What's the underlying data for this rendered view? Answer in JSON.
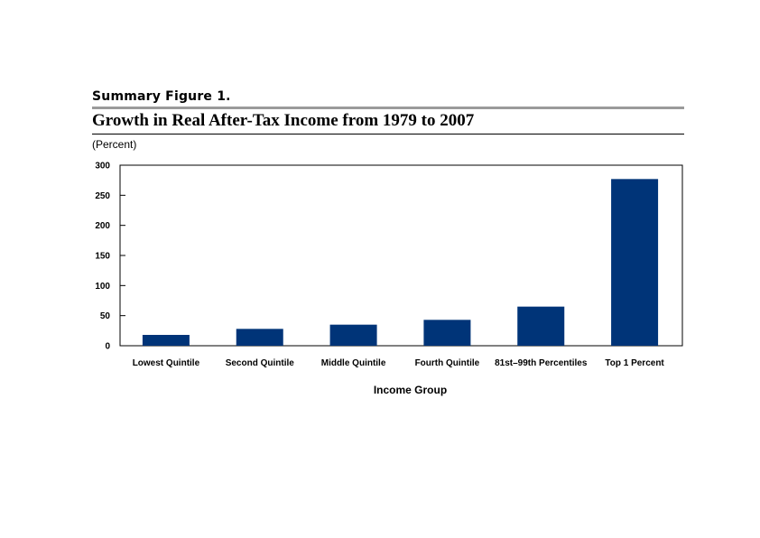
{
  "figure": {
    "label": "Summary Figure 1.",
    "unit_label": "(Percent)"
  },
  "chart_data": {
    "type": "bar",
    "title": "Growth in Real After-Tax Income from 1979 to 2007",
    "xlabel": "Income Group",
    "ylabel": "(Percent)",
    "categories": [
      "Lowest Quintile",
      "Second Quintile",
      "Middle Quintile",
      "Fourth Quintile",
      "81st–99th Percentiles",
      "Top 1 Percent"
    ],
    "values": [
      18,
      28,
      35,
      43,
      65,
      277
    ],
    "ylim": [
      0,
      300
    ],
    "yticks": [
      0,
      50,
      100,
      150,
      200,
      250,
      300
    ],
    "grid": false,
    "legend": "none",
    "bar_color": "#003478"
  }
}
